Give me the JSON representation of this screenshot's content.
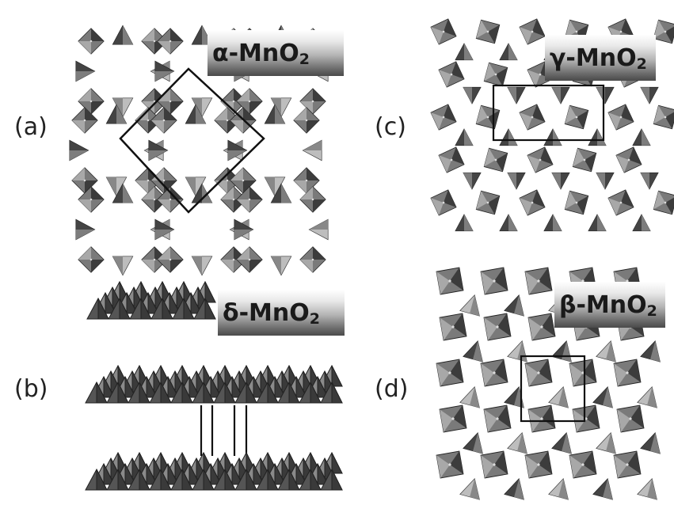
{
  "panels": {
    "a": {
      "letter": "(a)",
      "phase_prefix": "α-MnO",
      "phase_sub": "2"
    },
    "b": {
      "letter": "(b)",
      "phase_prefix": "δ-MnO",
      "phase_sub": "2"
    },
    "c": {
      "letter": "(c)",
      "phase_prefix": "γ-MnO",
      "phase_sub": "2"
    },
    "d": {
      "letter": "(d)",
      "phase_prefix": "β-MnO",
      "phase_sub": "2"
    }
  },
  "colors": {
    "octahedron_dark": "#3c3c3c",
    "octahedron_mid": "#7a7a7a",
    "octahedron_light": "#c8c8c8",
    "cell_line": "#111111"
  }
}
